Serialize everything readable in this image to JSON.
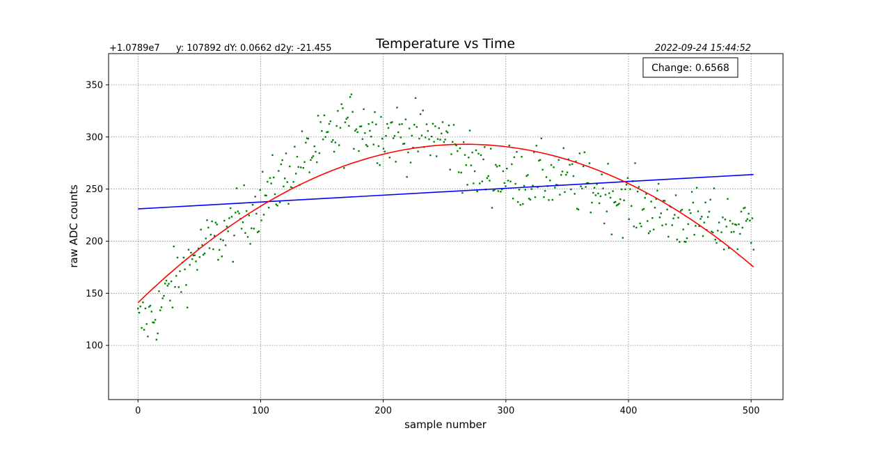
{
  "chart_data": {
    "type": "scatter",
    "title": "Temperature vs Time",
    "xlabel": "sample number",
    "ylabel": "raw ADC counts",
    "offset_label": "+1.0789e7",
    "info_text": "y: 107892  dY: 0.0662  d2y: -21.455",
    "timestamp": "2022-09-24 15:44:52",
    "annotation": "Change: 0.6568",
    "xlim": [
      -24,
      526
    ],
    "ylim": [
      48,
      380
    ],
    "xticks": [
      0,
      100,
      200,
      300,
      400,
      500
    ],
    "yticks": [
      100,
      150,
      200,
      250,
      300,
      350
    ],
    "grid": true,
    "n_points": 500,
    "colors": {
      "points": "#008000",
      "linear_fit": "#0000ff",
      "quadratic_fit": "#ff0000",
      "grid": "#808080"
    },
    "series": [
      {
        "kind": "scatter",
        "anchors_x": [
          0,
          15,
          30,
          50,
          75,
          100,
          125,
          150,
          175,
          200,
          225,
          250,
          275,
          300,
          325,
          350,
          375,
          400,
          425,
          450,
          475,
          500
        ],
        "anchors_y": [
          120,
          130,
          162,
          190,
          210,
          238,
          268,
          292,
          315,
          305,
          300,
          300,
          268,
          262,
          262,
          258,
          250,
          238,
          228,
          220,
          215,
          215
        ],
        "spread": 28
      },
      {
        "kind": "line",
        "x": [
          0,
          502
        ],
        "y": [
          231,
          264
        ]
      },
      {
        "kind": "quadratic",
        "x_start": 0,
        "x_end": 502,
        "y_start": 141,
        "vertex_x": 267,
        "vertex_y": 293,
        "y_end": 174
      }
    ]
  }
}
